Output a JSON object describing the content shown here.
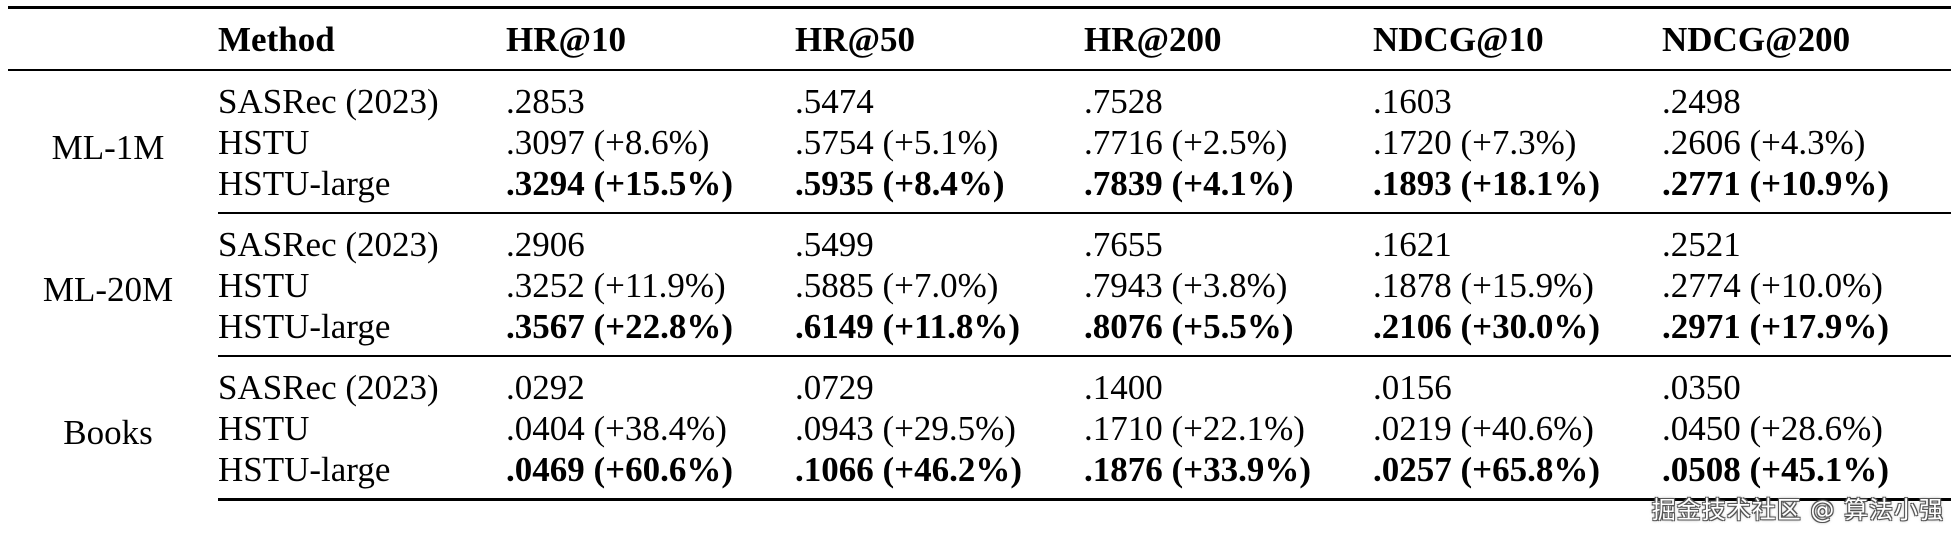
{
  "table": {
    "columns": [
      "",
      "Method",
      "HR@10",
      "HR@50",
      "HR@200",
      "NDCG@10",
      "NDCG@200"
    ],
    "groups": [
      {
        "dataset": "ML-1M",
        "rows": [
          {
            "method": "SASRec (2023)",
            "values": [
              ".2853",
              ".5474",
              ".7528",
              ".1603",
              ".2498"
            ],
            "best": false
          },
          {
            "method": "HSTU",
            "values": [
              ".3097 (+8.6%)",
              ".5754 (+5.1%)",
              ".7716 (+2.5%)",
              ".1720 (+7.3%)",
              ".2606 (+4.3%)"
            ],
            "best": false
          },
          {
            "method": "HSTU-large",
            "values": [
              ".3294 (+15.5%)",
              ".5935 (+8.4%)",
              ".7839 (+4.1%)",
              ".1893 (+18.1%)",
              ".2771 (+10.9%)"
            ],
            "best": true
          }
        ]
      },
      {
        "dataset": "ML-20M",
        "rows": [
          {
            "method": "SASRec (2023)",
            "values": [
              ".2906",
              ".5499",
              ".7655",
              ".1621",
              ".2521"
            ],
            "best": false
          },
          {
            "method": "HSTU",
            "values": [
              ".3252 (+11.9%)",
              ".5885 (+7.0%)",
              ".7943 (+3.8%)",
              ".1878 (+15.9%)",
              ".2774 (+10.0%)"
            ],
            "best": false
          },
          {
            "method": "HSTU-large",
            "values": [
              ".3567 (+22.8%)",
              ".6149 (+11.8%)",
              ".8076 (+5.5%)",
              ".2106 (+30.0%)",
              ".2971 (+17.9%)"
            ],
            "best": true
          }
        ]
      },
      {
        "dataset": "Books",
        "rows": [
          {
            "method": "SASRec (2023)",
            "values": [
              ".0292",
              ".0729",
              ".1400",
              ".0156",
              ".0350"
            ],
            "best": false
          },
          {
            "method": "HSTU",
            "values": [
              ".0404 (+38.4%)",
              ".0943 (+29.5%)",
              ".1710 (+22.1%)",
              ".0219 (+40.6%)",
              ".0450 (+28.6%)"
            ],
            "best": false
          },
          {
            "method": "HSTU-large",
            "values": [
              ".0469 (+60.6%)",
              ".1066 (+46.2%)",
              ".1876 (+33.9%)",
              ".0257 (+65.8%)",
              ".0508 (+45.1%)"
            ],
            "best": true
          }
        ]
      }
    ]
  },
  "watermark": "掘金技术社区 @ 算法小强"
}
